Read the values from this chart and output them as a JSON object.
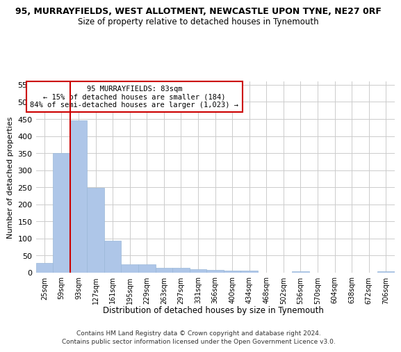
{
  "title_line1": "95, MURRAYFIELDS, WEST ALLOTMENT, NEWCASTLE UPON TYNE, NE27 0RF",
  "title_line2": "Size of property relative to detached houses in Tynemouth",
  "xlabel": "Distribution of detached houses by size in Tynemouth",
  "ylabel": "Number of detached properties",
  "footer_line1": "Contains HM Land Registry data © Crown copyright and database right 2024.",
  "footer_line2": "Contains public sector information licensed under the Open Government Licence v3.0.",
  "annotation_title": "95 MURRAYFIELDS: 83sqm",
  "annotation_line1": "← 15% of detached houses are smaller (184)",
  "annotation_line2": "84% of semi-detached houses are larger (1,023) →",
  "bar_values": [
    28,
    350,
    445,
    248,
    93,
    25,
    25,
    14,
    14,
    11,
    8,
    6,
    6,
    0,
    0,
    5,
    0,
    0,
    0,
    0,
    5
  ],
  "categories": [
    "25sqm",
    "59sqm",
    "93sqm",
    "127sqm",
    "161sqm",
    "195sqm",
    "229sqm",
    "263sqm",
    "297sqm",
    "331sqm",
    "366sqm",
    "400sqm",
    "434sqm",
    "468sqm",
    "502sqm",
    "536sqm",
    "570sqm",
    "604sqm",
    "638sqm",
    "672sqm",
    "706sqm"
  ],
  "bar_color": "#aec6e8",
  "bar_edge_color": "#9ab8d8",
  "red_line_color": "#cc0000",
  "annotation_box_color": "#ffffff",
  "annotation_box_edge_color": "#cc0000",
  "grid_color": "#cccccc",
  "background_color": "#ffffff",
  "ylim": [
    0,
    560
  ],
  "yticks": [
    0,
    50,
    100,
    150,
    200,
    250,
    300,
    350,
    400,
    450,
    500,
    550
  ],
  "red_line_x": 1.5
}
